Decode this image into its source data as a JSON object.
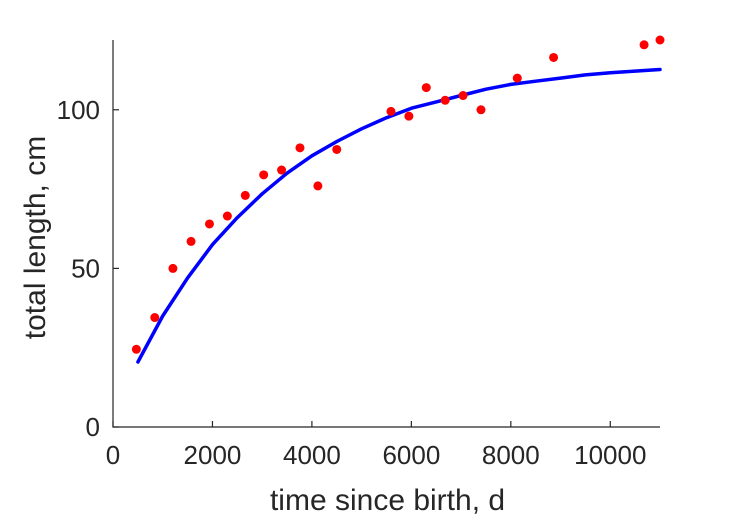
{
  "chart_data": {
    "type": "scatter",
    "xlabel": "time since birth, d",
    "ylabel": "total length, cm",
    "xlim": [
      0,
      11000
    ],
    "ylim": [
      0,
      122
    ],
    "xticks": [
      0,
      2000,
      4000,
      6000,
      8000,
      10000
    ],
    "yticks": [
      0,
      50,
      100
    ],
    "grid": false,
    "box": "left-bottom",
    "series": [
      {
        "kind": "points",
        "marker": "filled-circle",
        "color": "#ff0000",
        "points": [
          {
            "x": 470,
            "y": 24.5
          },
          {
            "x": 840,
            "y": 34.5
          },
          {
            "x": 1205,
            "y": 50.0
          },
          {
            "x": 1570,
            "y": 58.5
          },
          {
            "x": 1940,
            "y": 64.0
          },
          {
            "x": 2300,
            "y": 66.5
          },
          {
            "x": 2660,
            "y": 73.0
          },
          {
            "x": 3030,
            "y": 79.5
          },
          {
            "x": 3390,
            "y": 81.0
          },
          {
            "x": 3760,
            "y": 88.0
          },
          {
            "x": 4120,
            "y": 76.0
          },
          {
            "x": 4500,
            "y": 87.5
          },
          {
            "x": 5590,
            "y": 99.5
          },
          {
            "x": 5950,
            "y": 98.0
          },
          {
            "x": 6300,
            "y": 107.0
          },
          {
            "x": 6680,
            "y": 103.0
          },
          {
            "x": 7040,
            "y": 104.5
          },
          {
            "x": 7400,
            "y": 100.0
          },
          {
            "x": 8130,
            "y": 110.0
          },
          {
            "x": 8860,
            "y": 116.5
          },
          {
            "x": 10680,
            "y": 120.5
          },
          {
            "x": 11000,
            "y": 122.0
          }
        ]
      },
      {
        "kind": "curve",
        "color": "#0000ff",
        "points": [
          {
            "x": 500,
            "y": 20.5
          },
          {
            "x": 1000,
            "y": 35.0
          },
          {
            "x": 1500,
            "y": 47.0
          },
          {
            "x": 2000,
            "y": 57.5
          },
          {
            "x": 2500,
            "y": 66.0
          },
          {
            "x": 3000,
            "y": 73.5
          },
          {
            "x": 3500,
            "y": 80.0
          },
          {
            "x": 4000,
            "y": 85.5
          },
          {
            "x": 4500,
            "y": 90.0
          },
          {
            "x": 5000,
            "y": 94.0
          },
          {
            "x": 5500,
            "y": 97.5
          },
          {
            "x": 6000,
            "y": 100.5
          },
          {
            "x": 6500,
            "y": 102.5
          },
          {
            "x": 7000,
            "y": 104.5
          },
          {
            "x": 7500,
            "y": 106.5
          },
          {
            "x": 8000,
            "y": 108.0
          },
          {
            "x": 8500,
            "y": 109.0
          },
          {
            "x": 9000,
            "y": 110.0
          },
          {
            "x": 9500,
            "y": 111.0
          },
          {
            "x": 10000,
            "y": 111.7
          },
          {
            "x": 10500,
            "y": 112.2
          },
          {
            "x": 11000,
            "y": 112.7
          }
        ]
      }
    ]
  }
}
